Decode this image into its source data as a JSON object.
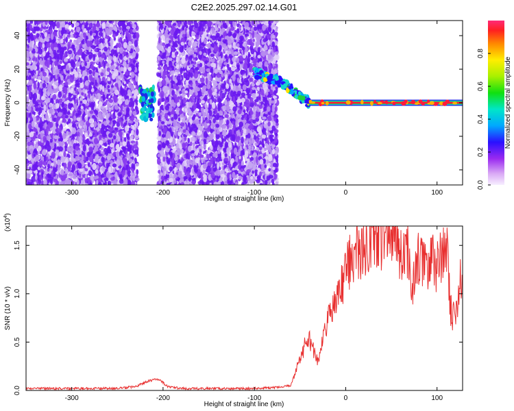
{
  "title": "C2E2.2025.297.02.14.G01",
  "colors": {
    "snr_line": "#e83030",
    "strong": "#ff1a3c",
    "medium": "#18d6d0",
    "weak": "#6a18f0",
    "faint": "#c7aaf2"
  },
  "chart_data": [
    {
      "type": "heatmap",
      "xlabel": "Height of straight line (km)",
      "ylabel": "Frequency (Hz)",
      "xlim": [
        -350,
        128
      ],
      "ylim": [
        -49,
        49
      ],
      "xticks": [
        -300,
        -200,
        -100,
        0,
        100
      ],
      "xtick_labels": [
        "-300",
        "-200",
        "-100",
        "0",
        "100"
      ],
      "yticks": [
        -40,
        -20,
        0,
        20,
        40
      ],
      "ytick_labels": [
        "-40",
        "-20",
        "0",
        "20",
        "40"
      ],
      "colorbar": {
        "label": "Normalized spectral amplitude",
        "range": [
          0,
          1
        ],
        "ticks": [
          0,
          0.2,
          0.4,
          0.6,
          0.8
        ],
        "tick_labels": [
          "0.0",
          "0.2",
          "0.4",
          "0.6",
          "0.8"
        ],
        "colormap": "rainbow (magenta-blue-cyan-green-yellow-red)"
      },
      "noise_regions": [
        {
          "x_range": [
            -350,
            -228
          ],
          "level": 0.2
        },
        {
          "x_range": [
            -205,
            -75
          ],
          "level": 0.2
        }
      ],
      "gap_regions": [
        {
          "x_range": [
            -228,
            -205
          ]
        },
        {
          "x_range": [
            -75,
            128
          ]
        }
      ],
      "features": [
        {
          "name": "",
          "x": [
            -225,
            -210
          ],
          "freq": [
            -10,
            10
          ],
          "amplitude": 0.4
        },
        {
          "name": "",
          "x": [
            -100,
            -70
          ],
          "freq_start": 18,
          "freq_end": 12,
          "amplitude": 0.45
        },
        {
          "name": "",
          "x": [
            -70,
            -40
          ],
          "freq_start": 12,
          "freq_end": 0,
          "amplitude": 0.45
        },
        {
          "name": "",
          "x": [
            -40,
            128
          ],
          "freq": 0,
          "amplitude": 1.0
        }
      ]
    },
    {
      "type": "line",
      "xlabel": "Height of straight line (km)",
      "ylabel": "SNR (10 * v/v)",
      "multiplier_label": "(x10",
      "multiplier_exp": "4",
      "multiplier_close": ")",
      "xlim": [
        -350,
        128
      ],
      "ylim": [
        0,
        1.7
      ],
      "xticks": [
        -300,
        -200,
        -100,
        0,
        100
      ],
      "xtick_labels": [
        "-300",
        "-200",
        "-100",
        "0",
        "100"
      ],
      "yticks": [
        0,
        0.5,
        1.0,
        1.5
      ],
      "ytick_labels": [
        "0.0",
        "0.5",
        "1.0",
        "1.5"
      ],
      "series": [
        {
          "name": "",
          "x": [
            -350,
            -300,
            -250,
            -230,
            -215,
            -205,
            -195,
            -180,
            -150,
            -100,
            -80,
            -60,
            -55,
            -50,
            -45,
            -40,
            -35,
            -30,
            -25,
            -20,
            -15,
            -10,
            -5,
            0,
            5,
            10,
            20,
            30,
            40,
            50,
            55,
            60,
            65,
            70,
            72,
            75,
            80,
            85,
            90,
            95,
            100,
            110,
            115,
            120,
            125,
            128
          ],
          "y": [
            0.02,
            0.02,
            0.02,
            0.04,
            0.1,
            0.12,
            0.04,
            0.02,
            0.02,
            0.02,
            0.03,
            0.05,
            0.2,
            0.35,
            0.45,
            0.55,
            0.4,
            0.3,
            0.6,
            0.7,
            0.8,
            0.95,
            1.05,
            1.2,
            1.35,
            1.4,
            1.5,
            1.55,
            1.58,
            1.62,
            1.55,
            1.4,
            1.35,
            1.45,
            0.8,
            1.2,
            1.4,
            1.35,
            1.15,
            1.4,
            1.25,
            1.55,
            0.85,
            0.7,
            1.2,
            1.1
          ]
        }
      ]
    }
  ]
}
